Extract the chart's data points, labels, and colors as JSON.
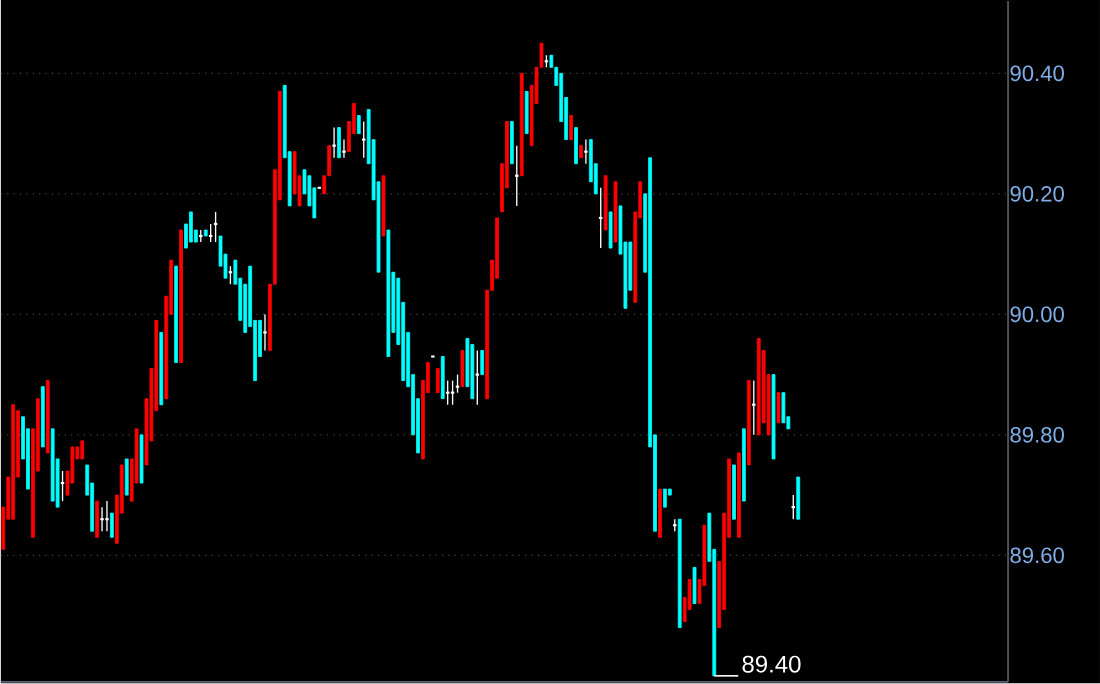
{
  "chart_data": {
    "type": "candlestick",
    "categories": [
      null,
      null,
      null,
      null,
      null,
      null,
      null,
      null,
      null,
      null,
      null,
      null,
      null,
      null,
      null,
      null,
      null,
      null,
      null,
      null,
      null,
      null,
      null,
      null,
      null,
      null,
      null,
      null,
      null,
      null,
      null,
      null,
      null,
      null,
      null,
      null,
      null,
      null,
      null,
      null,
      null,
      null,
      null,
      null,
      null,
      null,
      null,
      null,
      null,
      null,
      null,
      null,
      null,
      null,
      null,
      null,
      null,
      null,
      null,
      null,
      null,
      null,
      null,
      null,
      null,
      null,
      null,
      null,
      null,
      null,
      null,
      null,
      null,
      null,
      null,
      null,
      null,
      null,
      null,
      null,
      null,
      null,
      null,
      null,
      null,
      null,
      null,
      null,
      null,
      null,
      null,
      null,
      null,
      null,
      null,
      null,
      null,
      null,
      null,
      null,
      null,
      null,
      null,
      null,
      null,
      null,
      null,
      null,
      null,
      null,
      null,
      null,
      null,
      null,
      null,
      null,
      null,
      null,
      null,
      null,
      null,
      null,
      null,
      null,
      null,
      null,
      null,
      null,
      null,
      null,
      null,
      null,
      null,
      null,
      null,
      null,
      null,
      null,
      null,
      null,
      null,
      null,
      null,
      null,
      null,
      null,
      null,
      null,
      null,
      null,
      null,
      null,
      null,
      null,
      null,
      null,
      null,
      null,
      null,
      null,
      null,
      null,
      null,
      null,
      null,
      null,
      null,
      null,
      null,
      null,
      null,
      null,
      null,
      null,
      null,
      null,
      null,
      null,
      null,
      null,
      null,
      null,
      null,
      null,
      null,
      null,
      null,
      null,
      null,
      null,
      null,
      null,
      null,
      null,
      null,
      null,
      null,
      null,
      null,
      null,
      null,
      null,
      null,
      null
    ],
    "ohlc": [
      [
        89.61,
        89.68,
        89.61,
        89.68
      ],
      [
        89.66,
        89.73,
        89.66,
        89.73
      ],
      [
        89.66,
        89.85,
        89.66,
        89.85
      ],
      [
        89.73,
        89.84,
        89.73,
        89.84
      ],
      [
        89.83,
        89.83,
        89.76,
        89.76
      ],
      [
        89.81,
        89.81,
        89.71,
        89.71
      ],
      [
        89.63,
        89.81,
        89.63,
        89.81
      ],
      [
        89.74,
        89.86,
        89.74,
        89.86
      ],
      [
        89.88,
        89.88,
        89.78,
        89.78
      ],
      [
        89.77,
        89.89,
        89.77,
        89.89
      ],
      [
        89.81,
        89.81,
        89.69,
        89.69
      ],
      [
        89.76,
        89.76,
        89.68,
        89.68
      ],
      [
        89.72,
        89.74,
        89.69,
        89.72
      ],
      [
        89.7,
        89.74,
        89.7,
        89.74
      ],
      [
        89.72,
        89.78,
        89.72,
        89.78
      ],
      [
        89.76,
        89.78,
        89.76,
        89.78
      ],
      [
        89.76,
        89.79,
        89.76,
        89.79
      ],
      [
        89.75,
        89.75,
        89.7,
        89.7
      ],
      [
        89.72,
        89.72,
        89.64,
        89.64
      ],
      [
        89.63,
        89.69,
        89.63,
        89.69
      ],
      [
        89.66,
        89.68,
        89.64,
        89.66
      ],
      [
        89.66,
        89.69,
        89.64,
        89.66
      ],
      [
        89.67,
        89.67,
        89.63,
        89.63
      ],
      [
        89.62,
        89.7,
        89.62,
        89.7
      ],
      [
        89.67,
        89.75,
        89.67,
        89.75
      ],
      [
        89.76,
        89.76,
        89.7,
        89.7
      ],
      [
        89.69,
        89.76,
        89.69,
        89.76
      ],
      [
        89.72,
        89.81,
        89.72,
        89.81
      ],
      [
        89.8,
        89.8,
        89.72,
        89.72
      ],
      [
        89.75,
        89.86,
        89.75,
        89.86
      ],
      [
        89.79,
        89.91,
        89.79,
        89.91
      ],
      [
        89.84,
        89.99,
        89.84,
        89.99
      ],
      [
        89.97,
        89.97,
        89.85,
        89.85
      ],
      [
        89.86,
        90.03,
        89.86,
        90.03
      ],
      [
        90.0,
        90.09,
        90.0,
        90.09
      ],
      [
        90.08,
        90.08,
        89.92,
        89.92
      ],
      [
        89.92,
        90.14,
        89.92,
        90.14
      ],
      [
        90.15,
        90.15,
        90.11,
        90.11
      ],
      [
        90.17,
        90.17,
        90.12,
        90.12
      ],
      [
        90.14,
        90.14,
        90.12,
        90.12
      ],
      [
        90.13,
        90.14,
        90.12,
        90.13
      ],
      [
        90.14,
        90.14,
        90.13,
        90.13
      ],
      [
        90.13,
        90.15,
        90.12,
        90.13
      ],
      [
        90.15,
        90.17,
        90.12,
        90.15
      ],
      [
        90.13,
        90.13,
        90.08,
        90.08
      ],
      [
        90.1,
        90.1,
        90.06,
        90.06
      ],
      [
        90.07,
        90.08,
        90.05,
        90.07
      ],
      [
        90.09,
        90.09,
        90.05,
        90.05
      ],
      [
        90.06,
        90.06,
        89.99,
        89.99
      ],
      [
        90.05,
        90.05,
        89.97,
        89.97
      ],
      [
        90.08,
        90.08,
        89.98,
        89.98
      ],
      [
        89.99,
        89.99,
        89.89,
        89.89
      ],
      [
        89.99,
        89.99,
        89.93,
        89.93
      ],
      [
        89.97,
        90.0,
        89.94,
        89.97
      ],
      [
        89.94,
        90.05,
        89.94,
        90.05
      ],
      [
        90.05,
        90.24,
        90.05,
        90.24
      ],
      [
        90.19,
        90.37,
        90.19,
        90.37
      ],
      [
        90.38,
        90.38,
        90.26,
        90.26
      ],
      [
        90.27,
        90.27,
        90.18,
        90.18
      ],
      [
        90.2,
        90.27,
        90.2,
        90.27
      ],
      [
        90.18,
        90.23,
        90.18,
        90.23
      ],
      [
        90.24,
        90.24,
        90.2,
        90.2
      ],
      [
        90.23,
        90.23,
        90.18,
        90.18
      ],
      [
        90.21,
        90.21,
        90.16,
        90.16
      ],
      [
        90.21,
        90.21,
        90.21,
        90.21
      ],
      [
        90.2,
        90.23,
        90.2,
        90.23
      ],
      [
        90.23,
        90.28,
        90.23,
        90.28
      ],
      [
        90.28,
        90.31,
        90.26,
        90.28
      ],
      [
        90.31,
        90.31,
        90.26,
        90.26
      ],
      [
        90.27,
        90.29,
        90.26,
        90.27
      ],
      [
        90.27,
        90.32,
        90.27,
        90.32
      ],
      [
        90.3,
        90.35,
        90.3,
        90.35
      ],
      [
        90.33,
        90.33,
        90.3,
        90.3
      ],
      [
        90.29,
        90.32,
        90.26,
        90.29
      ],
      [
        90.34,
        90.34,
        90.25,
        90.25
      ],
      [
        90.29,
        90.29,
        90.19,
        90.19
      ],
      [
        90.22,
        90.22,
        90.07,
        90.07
      ],
      [
        90.13,
        90.23,
        90.13,
        90.23
      ],
      [
        90.14,
        90.14,
        89.93,
        89.93
      ],
      [
        90.07,
        90.07,
        89.97,
        89.97
      ],
      [
        90.06,
        90.06,
        89.95,
        89.95
      ],
      [
        90.02,
        90.02,
        89.89,
        89.89
      ],
      [
        89.97,
        89.97,
        89.88,
        89.88
      ],
      [
        89.9,
        89.9,
        89.8,
        89.8
      ],
      [
        89.86,
        89.86,
        89.77,
        89.77
      ],
      [
        89.76,
        89.89,
        89.76,
        89.89
      ],
      [
        89.87,
        89.92,
        89.87,
        89.92
      ],
      [
        89.93,
        89.93,
        89.93,
        89.93
      ],
      [
        89.87,
        89.91,
        89.87,
        89.91
      ],
      [
        89.93,
        89.93,
        89.86,
        89.86
      ],
      [
        89.87,
        89.89,
        89.85,
        89.87
      ],
      [
        89.87,
        89.89,
        89.85,
        89.87
      ],
      [
        89.88,
        89.9,
        89.87,
        89.88
      ],
      [
        89.88,
        89.94,
        89.88,
        89.94
      ],
      [
        89.96,
        89.96,
        89.88,
        89.88
      ],
      [
        89.95,
        89.95,
        89.86,
        89.86
      ],
      [
        89.9,
        89.94,
        89.85,
        89.9
      ],
      [
        89.94,
        89.94,
        89.9,
        89.9
      ],
      [
        89.86,
        90.04,
        89.86,
        90.04
      ],
      [
        90.04,
        90.09,
        90.04,
        90.09
      ],
      [
        90.06,
        90.16,
        90.06,
        90.16
      ],
      [
        90.17,
        90.25,
        90.17,
        90.25
      ],
      [
        90.21,
        90.32,
        90.21,
        90.32
      ],
      [
        90.32,
        90.32,
        90.25,
        90.25
      ],
      [
        90.23,
        90.28,
        90.18,
        90.23
      ],
      [
        90.23,
        90.4,
        90.23,
        90.4
      ],
      [
        90.37,
        90.37,
        90.3,
        90.3
      ],
      [
        90.28,
        90.38,
        90.28,
        90.38
      ],
      [
        90.35,
        90.41,
        90.35,
        90.41
      ],
      [
        90.41,
        90.45,
        90.41,
        90.45
      ],
      [
        90.42,
        90.43,
        90.41,
        90.42
      ],
      [
        90.43,
        90.43,
        90.41,
        90.41
      ],
      [
        90.41,
        90.41,
        90.38,
        90.38
      ],
      [
        90.4,
        90.4,
        90.32,
        90.32
      ],
      [
        90.36,
        90.36,
        90.29,
        90.29
      ],
      [
        90.29,
        90.33,
        90.29,
        90.33
      ],
      [
        90.31,
        90.31,
        90.25,
        90.25
      ],
      [
        90.26,
        90.28,
        90.26,
        90.28
      ],
      [
        90.27,
        90.29,
        90.25,
        90.27
      ],
      [
        90.29,
        90.29,
        90.22,
        90.22
      ],
      [
        90.25,
        90.25,
        90.2,
        90.2
      ],
      [
        90.16,
        90.21,
        90.11,
        90.16
      ],
      [
        90.14,
        90.23,
        90.14,
        90.23
      ],
      [
        90.17,
        90.17,
        90.11,
        90.11
      ],
      [
        90.12,
        90.22,
        90.12,
        90.22
      ],
      [
        90.18,
        90.18,
        90.1,
        90.1
      ],
      [
        90.12,
        90.12,
        90.01,
        90.01
      ],
      [
        90.12,
        90.12,
        90.04,
        90.04
      ],
      [
        90.02,
        90.17,
        90.02,
        90.17
      ],
      [
        90.16,
        90.22,
        90.16,
        90.22
      ],
      [
        90.2,
        90.2,
        90.07,
        90.07
      ],
      [
        90.26,
        90.26,
        89.78,
        89.78
      ],
      [
        89.8,
        89.8,
        89.64,
        89.64
      ],
      [
        89.63,
        89.71,
        89.63,
        89.71
      ],
      [
        89.71,
        89.71,
        89.68,
        89.68
      ],
      [
        89.71,
        89.71,
        89.7,
        89.7
      ],
      [
        89.65,
        89.66,
        89.64,
        89.65
      ],
      [
        89.66,
        89.66,
        89.48,
        89.48
      ],
      [
        89.49,
        89.53,
        89.49,
        89.53
      ],
      [
        89.51,
        89.56,
        89.51,
        89.56
      ],
      [
        89.58,
        89.58,
        89.52,
        89.52
      ],
      [
        89.52,
        89.56,
        89.52,
        89.56
      ],
      [
        89.55,
        89.65,
        89.55,
        89.65
      ],
      [
        89.67,
        89.67,
        89.59,
        89.59
      ],
      [
        89.61,
        89.61,
        89.4,
        89.4
      ],
      [
        89.48,
        89.59,
        89.48,
        89.59
      ],
      [
        89.51,
        89.67,
        89.51,
        89.67
      ],
      [
        89.63,
        89.76,
        89.63,
        89.76
      ],
      [
        89.75,
        89.75,
        89.66,
        89.66
      ],
      [
        89.63,
        89.77,
        89.63,
        89.77
      ],
      [
        89.81,
        89.81,
        89.69,
        89.69
      ],
      [
        89.75,
        89.89,
        89.75,
        89.89
      ],
      [
        89.85,
        89.89,
        89.8,
        89.85
      ],
      [
        89.8,
        89.96,
        89.8,
        89.96
      ],
      [
        89.82,
        89.94,
        89.82,
        89.94
      ],
      [
        89.8,
        89.9,
        89.8,
        89.9
      ],
      [
        89.9,
        89.9,
        89.76,
        89.76
      ],
      [
        89.82,
        89.87,
        89.82,
        89.87
      ],
      [
        89.87,
        89.87,
        89.82,
        89.82
      ],
      [
        89.83,
        89.83,
        89.81,
        89.81
      ],
      [
        89.68,
        89.7,
        89.66,
        89.68
      ],
      [
        89.73,
        89.73,
        89.66,
        89.66
      ],
      null,
      null,
      null,
      null,
      null,
      null,
      null,
      null,
      null,
      null,
      null,
      null,
      null,
      null,
      null,
      null,
      null,
      null,
      null,
      null,
      null,
      null,
      null,
      null,
      null,
      null,
      null,
      null,
      null,
      null,
      null,
      null,
      null,
      null,
      null,
      null,
      null,
      null,
      null,
      null,
      null,
      null
    ],
    "colors": [
      "#ff0000",
      "#ff0000",
      "#ff0000",
      "#ff0000",
      "#00ffff",
      "#00ffff",
      "#ff0000",
      "#ff0000",
      "#00ffff",
      "#ff0000",
      "#00ffff",
      "#00ffff",
      "#ffffff",
      "#ff0000",
      "#ff0000",
      "#ff0000",
      "#ff0000",
      "#00ffff",
      "#00ffff",
      "#ff0000",
      "#ffffff",
      "#ffffff",
      "#00ffff",
      "#ff0000",
      "#ff0000",
      "#00ffff",
      "#ff0000",
      "#ff0000",
      "#00ffff",
      "#ff0000",
      "#ff0000",
      "#ff0000",
      "#00ffff",
      "#ff0000",
      "#ff0000",
      "#00ffff",
      "#ff0000",
      "#00ffff",
      "#00ffff",
      "#00ffff",
      "#ffffff",
      "#00ffff",
      "#ffffff",
      "#ffffff",
      "#00ffff",
      "#00ffff",
      "#ffffff",
      "#00ffff",
      "#00ffff",
      "#00ffff",
      "#00ffff",
      "#00ffff",
      "#00ffff",
      "#ffffff",
      "#ff0000",
      "#ff0000",
      "#ff0000",
      "#00ffff",
      "#00ffff",
      "#ff0000",
      "#ff0000",
      "#00ffff",
      "#00ffff",
      "#00ffff",
      "#ffffff",
      "#ff0000",
      "#ff0000",
      "#ffffff",
      "#00ffff",
      "#ffffff",
      "#ff0000",
      "#ff0000",
      "#00ffff",
      "#ffffff",
      "#00ffff",
      "#00ffff",
      "#00ffff",
      "#ff0000",
      "#00ffff",
      "#00ffff",
      "#00ffff",
      "#00ffff",
      "#00ffff",
      "#00ffff",
      "#00ffff",
      "#ff0000",
      "#ff0000",
      "#ffffff",
      "#ff0000",
      "#00ffff",
      "#ffffff",
      "#ffffff",
      "#ffffff",
      "#ff0000",
      "#00ffff",
      "#00ffff",
      "#ffffff",
      "#00ffff",
      "#ff0000",
      "#ff0000",
      "#ff0000",
      "#ff0000",
      "#ff0000",
      "#00ffff",
      "#ffffff",
      "#ff0000",
      "#00ffff",
      "#ff0000",
      "#ff0000",
      "#ff0000",
      "#ffffff",
      "#00ffff",
      "#00ffff",
      "#00ffff",
      "#00ffff",
      "#ff0000",
      "#00ffff",
      "#ff0000",
      "#ffffff",
      "#00ffff",
      "#00ffff",
      "#ffffff",
      "#ff0000",
      "#00ffff",
      "#ff0000",
      "#00ffff",
      "#00ffff",
      "#00ffff",
      "#ff0000",
      "#ff0000",
      "#00ffff",
      "#00ffff",
      "#00ffff",
      "#ff0000",
      "#00ffff",
      "#00ffff",
      "#ffffff",
      "#00ffff",
      "#ff0000",
      "#ff0000",
      "#00ffff",
      "#ff0000",
      "#ff0000",
      "#00ffff",
      "#00ffff",
      "#ff0000",
      "#ff0000",
      "#ff0000",
      "#00ffff",
      "#ff0000",
      "#00ffff",
      "#ff0000",
      "#ffffff",
      "#ff0000",
      "#ff0000",
      "#ff0000",
      "#00ffff",
      "#ff0000",
      "#00ffff",
      "#00ffff",
      "#ffffff",
      "#00ffff",
      null,
      null,
      null,
      null,
      null,
      null,
      null,
      null,
      null,
      null,
      null,
      null,
      null,
      null,
      null,
      null,
      null,
      null,
      null,
      null,
      null,
      null,
      null,
      null,
      null,
      null,
      null,
      null,
      null,
      null,
      null,
      null,
      null,
      null,
      null,
      null,
      null,
      null,
      null,
      null,
      null,
      null
    ],
    "ylim": [
      89.39,
      90.52
    ],
    "yticks": [
      {
        "value": 89.6,
        "label": "89.60"
      },
      {
        "value": 89.8,
        "label": "89.80"
      },
      {
        "value": 90.0,
        "label": "90.00"
      },
      {
        "value": 90.2,
        "label": "90.20"
      },
      {
        "value": 90.4,
        "label": "90.40"
      }
    ],
    "grid": "y",
    "tick_labels": "y",
    "annotations": [
      "89.40"
    ]
  }
}
